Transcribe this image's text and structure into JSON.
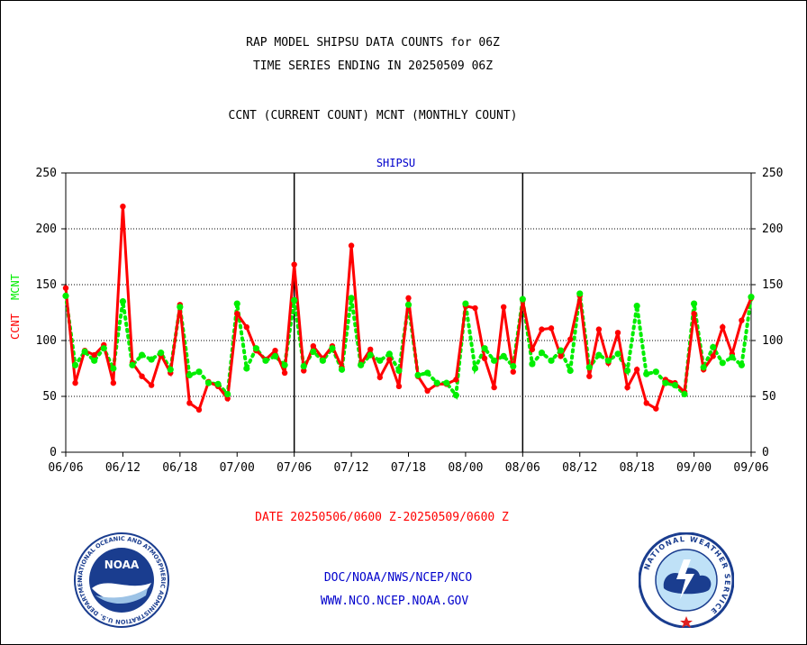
{
  "header": {
    "title_line1": "RAP MODEL SHIPSU DATA COUNTS for 06Z",
    "title_line2": "TIME SERIES ENDING IN 20250509 06Z",
    "subtitle": "CCNT (CURRENT COUNT) MCNT (MONTHLY COUNT)"
  },
  "footer": {
    "date_range": "DATE 20250506/0600 Z-20250509/0600 Z",
    "agency": "DOC/NOAA/NWS/NCEP/NCO",
    "website": "WWW.NCO.NCEP.NOAA.GOV"
  },
  "logos": {
    "noaa_emblem": "NOAA",
    "noaa_ring_text": "NATIONAL OCEANIC AND ATMOSPHERIC ADMINISTRATION U.S. DEPARTMENT OF COMMERCE",
    "nws_ring_text": "NATIONAL WEATHER SERVICE"
  },
  "chart_data": {
    "type": "line",
    "title": "SHIPSU",
    "ylabel_left": "CCNT",
    "ylabel_right": "MCNT",
    "ylim": [
      0,
      250
    ],
    "yticks": [
      0,
      50,
      100,
      150,
      200,
      250
    ],
    "xticks": [
      "06/06",
      "06/12",
      "06/18",
      "07/00",
      "07/06",
      "07/12",
      "07/18",
      "08/00",
      "08/06",
      "08/12",
      "08/18",
      "09/00",
      "09/06"
    ],
    "grid": true,
    "colors": {
      "ccnt": "#ff0000",
      "mcnt": "#00ee00",
      "title": "#0000cc",
      "footer_red": "#ff0000",
      "footer_blue": "#0000cc"
    },
    "series": [
      {
        "name": "CCNT",
        "values": [
          147,
          62,
          91,
          87,
          96,
          62,
          220,
          80,
          68,
          60,
          87,
          71,
          132,
          44,
          38,
          63,
          59,
          48,
          124,
          112,
          91,
          83,
          91,
          71,
          168,
          73,
          95,
          84,
          95,
          76,
          185,
          79,
          92,
          67,
          83,
          59,
          138,
          68,
          55,
          61,
          61,
          65,
          131,
          129,
          84,
          58,
          130,
          72,
          136,
          92,
          110,
          111,
          86,
          101,
          140,
          68,
          110,
          80,
          107,
          58,
          74,
          44,
          39,
          65,
          62,
          54,
          124,
          74,
          86,
          112,
          88,
          118,
          138
        ]
      },
      {
        "name": "MCNT",
        "values": [
          140,
          78,
          90,
          82,
          93,
          75,
          135,
          78,
          87,
          83,
          89,
          74,
          130,
          69,
          72,
          62,
          61,
          52,
          133,
          75,
          93,
          82,
          86,
          78,
          136,
          77,
          90,
          82,
          93,
          74,
          138,
          78,
          87,
          82,
          88,
          73,
          132,
          69,
          71,
          62,
          62,
          51,
          133,
          75,
          93,
          82,
          86,
          77,
          137,
          79,
          89,
          82,
          91,
          73,
          142,
          76,
          87,
          82,
          88,
          73,
          131,
          70,
          72,
          62,
          60,
          52,
          133,
          76,
          94,
          80,
          85,
          78,
          139
        ]
      }
    ]
  }
}
